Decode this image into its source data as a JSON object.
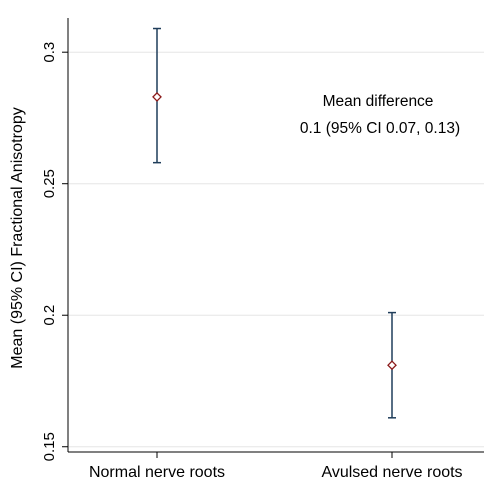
{
  "chart_data": {
    "type": "scatter",
    "title": "",
    "xlabel": "",
    "ylabel": "Mean (95% CI) Fractional Anisotropy",
    "categories": [
      "Normal nerve roots",
      "Avulsed nerve roots"
    ],
    "points": [
      {
        "category": "Normal nerve roots",
        "mean": 0.283,
        "ci_low": 0.258,
        "ci_high": 0.309
      },
      {
        "category": "Avulsed nerve roots",
        "mean": 0.181,
        "ci_low": 0.161,
        "ci_high": 0.201
      }
    ],
    "ylim": [
      0.148,
      0.313
    ],
    "yticks": [
      0.15,
      0.2,
      0.25,
      0.3
    ],
    "ytick_labels": [
      "0.15",
      "0.2",
      "0.25",
      "0.3"
    ],
    "grid": true,
    "annotations": [
      "Mean difference",
      "0.1 (95% CI 0.07, 0.13)"
    ],
    "colors": {
      "marker": "#8b1a1a",
      "error_bar": "#1f3d5a",
      "grid": "#e6e6e6",
      "axis": "#000000"
    }
  }
}
